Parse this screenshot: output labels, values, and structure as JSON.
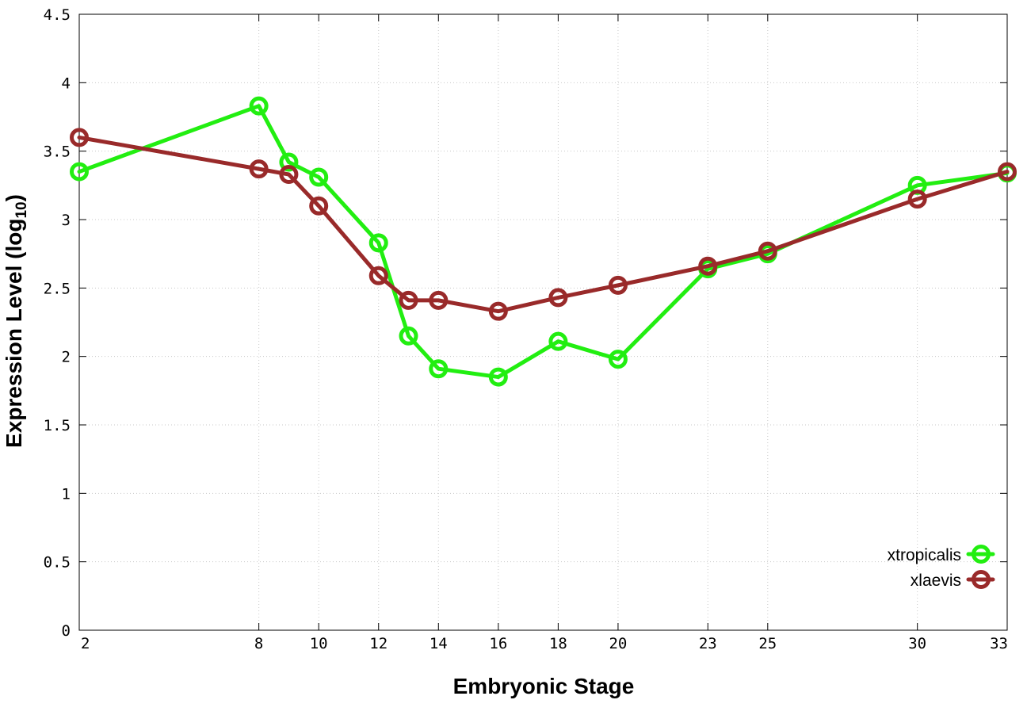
{
  "chart_data": {
    "type": "line",
    "xlabel": "Embryonic Stage",
    "ylabel": "Expression Level (log",
    "ylabel_subscript": "10",
    "ylabel_close": ")",
    "xlim": [
      2,
      33
    ],
    "ylim": [
      0,
      4.5
    ],
    "x_ticks": [
      2,
      8,
      10,
      12,
      14,
      16,
      18,
      20,
      23,
      25,
      30,
      33
    ],
    "y_ticks": [
      0,
      0.5,
      1,
      1.5,
      2,
      2.5,
      3,
      3.5,
      4,
      4.5
    ],
    "x_tick_labels": [
      "2",
      "8",
      "10",
      "12",
      "14",
      "16",
      "18",
      "20",
      "23",
      "25",
      "30",
      "33"
    ],
    "y_tick_labels": [
      "0",
      "0.5",
      "1",
      "1.5",
      "2",
      "2.5",
      "3",
      "3.5",
      "4",
      "4.5"
    ],
    "grid": true,
    "legend_position": "bottom-right",
    "series": [
      {
        "name": "xtropicalis",
        "color": "#22ee11",
        "x": [
          2,
          8,
          9,
          10,
          12,
          13,
          14,
          16,
          18,
          20,
          23,
          25,
          30,
          33
        ],
        "y": [
          3.35,
          3.83,
          3.42,
          3.31,
          2.83,
          2.15,
          1.91,
          1.85,
          2.11,
          1.98,
          2.64,
          2.75,
          3.25,
          3.34
        ]
      },
      {
        "name": "xlaevis",
        "color": "#992a2a",
        "x": [
          2,
          8,
          9,
          10,
          12,
          13,
          14,
          16,
          18,
          20,
          23,
          25,
          30,
          33
        ],
        "y": [
          3.6,
          3.37,
          3.33,
          3.1,
          2.59,
          2.41,
          2.41,
          2.33,
          2.43,
          2.52,
          2.66,
          2.77,
          3.15,
          3.35
        ]
      }
    ]
  }
}
